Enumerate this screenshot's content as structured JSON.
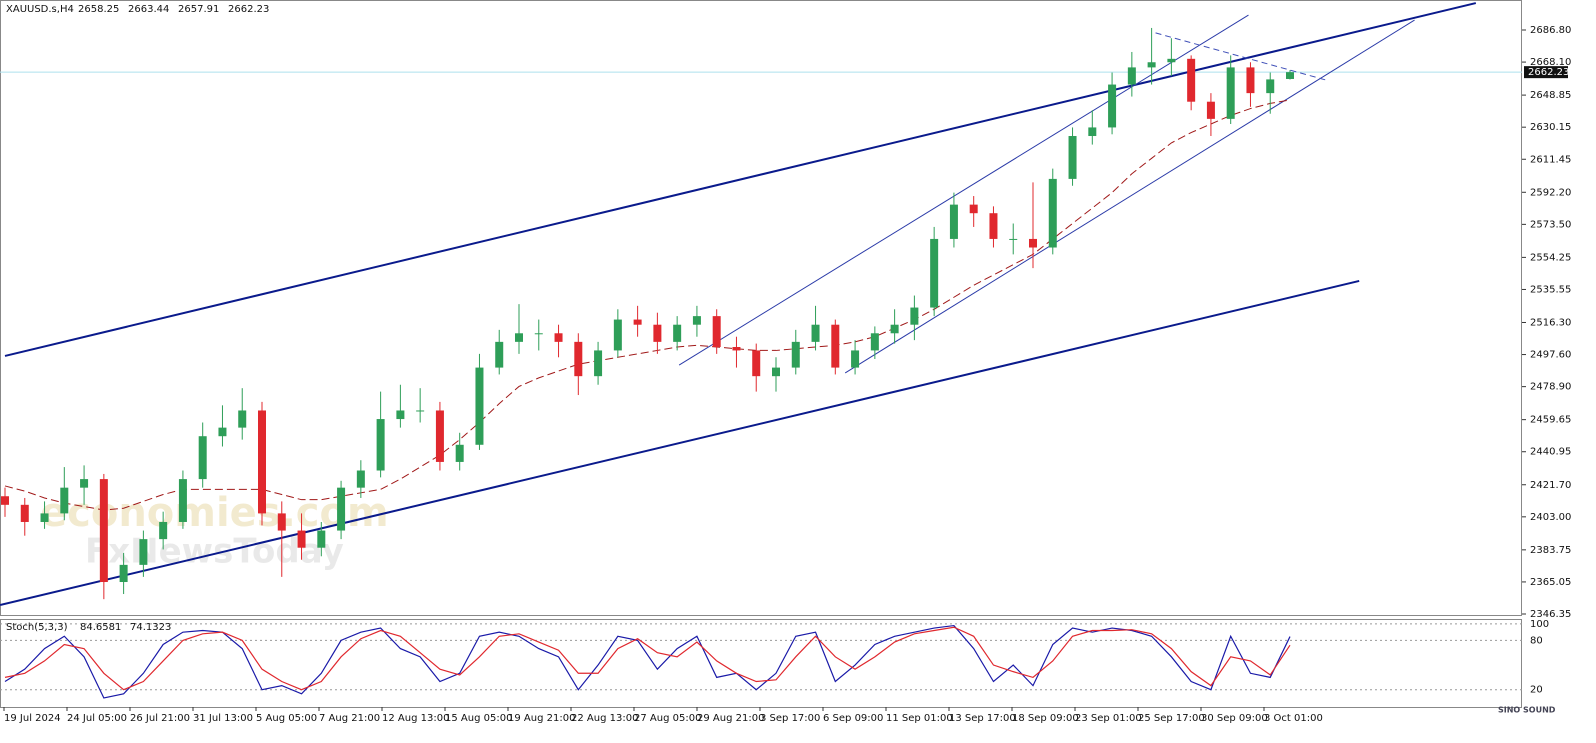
{
  "chart_data": {
    "type": "candlestick",
    "symbol": "XAUUSD.s,H4",
    "up_color": "#2e9e58",
    "down_color": "#e0282e",
    "ylim": [
      2345.77,
      2704.29
    ],
    "yticks": [
      {
        "value": 2686.8,
        "label": "2686.80"
      },
      {
        "value": 2668.1,
        "label": "2668.10"
      },
      {
        "value": 2648.85,
        "label": "2648.85"
      },
      {
        "value": 2630.15,
        "label": "2630.15"
      },
      {
        "value": 2611.45,
        "label": "2611.45"
      },
      {
        "value": 2592.2,
        "label": "2592.20"
      },
      {
        "value": 2573.5,
        "label": "2573.50"
      },
      {
        "value": 2554.25,
        "label": "2554.25"
      },
      {
        "value": 2535.55,
        "label": "2535.55"
      },
      {
        "value": 2516.3,
        "label": "2516.30"
      },
      {
        "value": 2497.6,
        "label": "2497.60"
      },
      {
        "value": 2478.9,
        "label": "2478.90"
      },
      {
        "value": 2459.65,
        "label": "2459.65"
      },
      {
        "value": 2440.95,
        "label": "2440.95"
      },
      {
        "value": 2421.7,
        "label": "2421.70"
      },
      {
        "value": 2403.0,
        "label": "2403.00"
      },
      {
        "value": 2383.75,
        "label": "2383.75"
      },
      {
        "value": 2365.05,
        "label": "2365.05"
      },
      {
        "value": 2346.35,
        "label": "2346.35"
      }
    ],
    "x_labels": [
      "19 Jul 2024",
      "24 Jul 05:00",
      "26 Jul 21:00",
      "31 Jul 13:00",
      "5 Aug 05:00",
      "7 Aug 21:00",
      "12 Aug 13:00",
      "15 Aug 05:00",
      "19 Aug 21:00",
      "22 Aug 13:00",
      "27 Aug 05:00",
      "29 Aug 21:00",
      "3 Sep 17:00",
      "6 Sep 09:00",
      "11 Sep 01:00",
      "13 Sep 17:00",
      "18 Sep 09:00",
      "23 Sep 01:00",
      "25 Sep 17:00",
      "30 Sep 09:00",
      "3 Oct 01:00"
    ],
    "ohlc": [
      [
        2415,
        2420,
        2403,
        2410
      ],
      [
        2410,
        2414,
        2392,
        2400
      ],
      [
        2400,
        2412,
        2396,
        2405
      ],
      [
        2405,
        2432,
        2401,
        2420
      ],
      [
        2420,
        2433,
        2410,
        2425
      ],
      [
        2425,
        2428,
        2355,
        2365
      ],
      [
        2365,
        2382,
        2358,
        2375
      ],
      [
        2375,
        2395,
        2368,
        2390
      ],
      [
        2390,
        2406,
        2384,
        2400
      ],
      [
        2400,
        2430,
        2396,
        2425
      ],
      [
        2425,
        2458,
        2420,
        2450
      ],
      [
        2450,
        2468,
        2444,
        2455
      ],
      [
        2455,
        2478,
        2448,
        2465
      ],
      [
        2465,
        2470,
        2398,
        2405
      ],
      [
        2405,
        2412,
        2368,
        2395
      ],
      [
        2395,
        2405,
        2378,
        2385
      ],
      [
        2385,
        2400,
        2380,
        2395
      ],
      [
        2395,
        2424,
        2390,
        2420
      ],
      [
        2420,
        2436,
        2414,
        2430
      ],
      [
        2430,
        2476,
        2426,
        2460
      ],
      [
        2460,
        2480,
        2455,
        2465
      ],
      [
        2465,
        2478,
        2458,
        2465
      ],
      [
        2465,
        2470,
        2430,
        2435
      ],
      [
        2435,
        2452,
        2430,
        2445
      ],
      [
        2445,
        2498,
        2442,
        2490
      ],
      [
        2490,
        2512,
        2486,
        2505
      ],
      [
        2505,
        2527,
        2498,
        2510
      ],
      [
        2510,
        2518,
        2500,
        2510
      ],
      [
        2510,
        2515,
        2496,
        2505
      ],
      [
        2505,
        2510,
        2474,
        2485
      ],
      [
        2485,
        2505,
        2480,
        2500
      ],
      [
        2500,
        2524,
        2496,
        2518
      ],
      [
        2518,
        2526,
        2508,
        2515
      ],
      [
        2515,
        2522,
        2498,
        2505
      ],
      [
        2505,
        2520,
        2500,
        2515
      ],
      [
        2515,
        2526,
        2508,
        2520
      ],
      [
        2520,
        2524,
        2498,
        2502
      ],
      [
        2502,
        2508,
        2490,
        2500
      ],
      [
        2500,
        2504,
        2476,
        2485
      ],
      [
        2485,
        2496,
        2476,
        2490
      ],
      [
        2490,
        2512,
        2486,
        2505
      ],
      [
        2505,
        2526,
        2500,
        2515
      ],
      [
        2515,
        2518,
        2486,
        2490
      ],
      [
        2490,
        2506,
        2486,
        2500
      ],
      [
        2500,
        2514,
        2495,
        2510
      ],
      [
        2510,
        2524,
        2504,
        2515
      ],
      [
        2515,
        2532,
        2506,
        2525
      ],
      [
        2525,
        2572,
        2520,
        2565
      ],
      [
        2565,
        2592,
        2560,
        2585
      ],
      [
        2585,
        2590,
        2572,
        2580
      ],
      [
        2580,
        2584,
        2560,
        2565
      ],
      [
        2565,
        2574,
        2556,
        2565
      ],
      [
        2565,
        2598,
        2548,
        2560
      ],
      [
        2560,
        2606,
        2556,
        2600
      ],
      [
        2600,
        2630,
        2596,
        2625
      ],
      [
        2625,
        2640,
        2620,
        2630
      ],
      [
        2630,
        2662,
        2626,
        2655
      ],
      [
        2655,
        2674,
        2648,
        2665
      ],
      [
        2665,
        2688,
        2655,
        2668
      ],
      [
        2668,
        2682,
        2660,
        2670
      ],
      [
        2670,
        2672,
        2640,
        2645
      ],
      [
        2645,
        2650,
        2625,
        2635
      ],
      [
        2635,
        2672,
        2632,
        2665
      ],
      [
        2665,
        2668,
        2642,
        2650
      ],
      [
        2650,
        2662,
        2638,
        2658
      ],
      [
        2658.25,
        2663.44,
        2657.91,
        2662.23
      ]
    ],
    "ma": {
      "color": "#a01818",
      "values": [
        2421,
        2418,
        2414,
        2411,
        2409,
        2407,
        2408,
        2412,
        2416,
        2419,
        2419,
        2419,
        2419,
        2419,
        2416,
        2413,
        2413,
        2415,
        2417,
        2419,
        2425,
        2432,
        2439,
        2448,
        2458,
        2469,
        2479,
        2484,
        2488,
        2492,
        2494,
        2496,
        2498,
        2500,
        2502,
        2503,
        2502,
        2501,
        2500,
        2500,
        2501,
        2502,
        2503,
        2505,
        2508,
        2513,
        2518,
        2524,
        2531,
        2538,
        2544,
        2550,
        2556,
        2565,
        2574,
        2583,
        2592,
        2603,
        2612,
        2621,
        2627,
        2632,
        2637,
        2641,
        2644,
        2646
      ]
    },
    "price_line_color": "#aee0ee",
    "trendlines": [
      {
        "x": [
          0,
          74.4
        ],
        "y": [
          2496.8,
          2702.5
        ],
        "color": "#0a1a8c",
        "width": 2
      },
      {
        "x": [
          -0.25,
          68.5
        ],
        "y": [
          2351.6,
          2540.5
        ],
        "color": "#0a1a8c",
        "width": 2
      },
      {
        "x": [
          34.1,
          62.9
        ],
        "y": [
          2491.5,
          2695.5
        ],
        "color": "#2b3ba8",
        "width": 1
      },
      {
        "x": [
          42.5,
          71.3
        ],
        "y": [
          2486.9,
          2692.6
        ],
        "color": "#2b3ba8",
        "width": 1
      },
      {
        "x": [
          58.2,
          66.8
        ],
        "y": [
          2685.1,
          2657.7
        ],
        "color": "#4050b8",
        "width": 1,
        "dash": true
      }
    ],
    "watermark": [
      "economies.com",
      "FxNewsToday"
    ],
    "logo": "SINO SOUND",
    "stoch": {
      "name": "Stoch(5,3,3)",
      "ylim": [
        -1,
        106
      ],
      "yticks": [
        100,
        80,
        20
      ],
      "series": [
        {
          "color": "#1a1aa8",
          "values": [
            30,
            45,
            70,
            85,
            60,
            10,
            15,
            40,
            75,
            90,
            92,
            90,
            70,
            20,
            25,
            15,
            40,
            80,
            90,
            95,
            70,
            60,
            30,
            40,
            85,
            90,
            85,
            70,
            60,
            20,
            50,
            85,
            80,
            45,
            70,
            85,
            35,
            40,
            20,
            40,
            85,
            90,
            30,
            50,
            75,
            85,
            90,
            95,
            98,
            70,
            30,
            50,
            25,
            75,
            95,
            90,
            95,
            92,
            85,
            60,
            30,
            20,
            85,
            40,
            35,
            84.6581
          ]
        },
        {
          "color": "#e0282e",
          "values": [
            35,
            40,
            55,
            75,
            70,
            40,
            20,
            30,
            55,
            80,
            88,
            90,
            80,
            45,
            30,
            20,
            30,
            60,
            82,
            92,
            85,
            65,
            45,
            38,
            60,
            85,
            88,
            78,
            68,
            40,
            40,
            70,
            82,
            65,
            60,
            78,
            55,
            40,
            30,
            32,
            60,
            85,
            60,
            45,
            60,
            78,
            88,
            92,
            96,
            85,
            50,
            42,
            35,
            55,
            85,
            92,
            92,
            93,
            88,
            70,
            42,
            25,
            60,
            55,
            38,
            74.1323
          ]
        }
      ]
    }
  }
}
